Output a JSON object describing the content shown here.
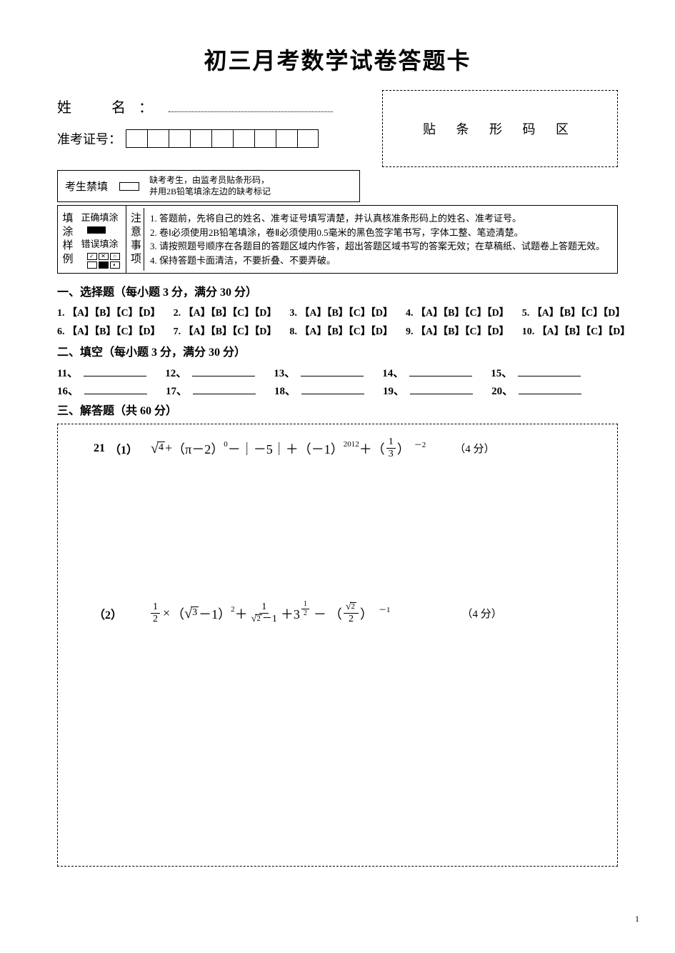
{
  "title": "初三月考数学试卷答题卡",
  "name_label": "姓　名：",
  "ticket_label": "准考证号：",
  "ticket_box_count": 9,
  "barcode_label": "贴 条 形 码 区",
  "absent_label": "考生禁填",
  "absent_text_1": "缺考考生，由监考员贴条形码，",
  "absent_text_2": "并用2B铅笔填涂左边的缺考标记",
  "fill_sample_vlabel": "填涂样例",
  "fill_correct_label": "正确填涂",
  "fill_wrong_label": "错误填涂",
  "notes_vlabel": "注意事项",
  "notes": [
    "1. 答题前，先将自己的姓名、准考证号填写清楚，并认真核准条形码上的姓名、准考证号。",
    "2. 卷Ⅰ必须使用2B铅笔填涂，卷Ⅱ必须使用0.5毫米的黑色签字笔书写，字体工整、笔迹清楚。",
    "3. 请按照题号顺序在各题目的答题区域内作答，超出答题区域书写的答案无效；在草稿纸、试题卷上答题无效。",
    "4. 保持答题卡面清洁，不要折叠、不要弄破。"
  ],
  "section1_heading": "一、选择题（每小题 3 分，满分 30 分）",
  "mc_options": "【A】【B】【C】【D】",
  "mc_numbers_row1": [
    "1.",
    "2.",
    "3.",
    "4.",
    "5."
  ],
  "mc_numbers_row2": [
    "6.",
    "7.",
    "8.",
    "9.",
    "10."
  ],
  "section2_heading": "二、填空（每小题 3 分，满分 30 分）",
  "fill_numbers_row1": [
    "11、",
    "12、",
    "13、",
    "14、",
    "15、"
  ],
  "fill_numbers_row2": [
    "16、",
    "17、",
    "18、",
    "19、",
    "20、"
  ],
  "section3_heading": "三、解答题（共 60 分）",
  "q21_num": "21",
  "q21_part1": "（1）",
  "q21_part2": "（2）",
  "q21_pts1": "（4 分）",
  "q21_pts2": "（4 分）",
  "math1": {
    "sqrt_arg": "4",
    "plus1": "+",
    "paren_pi": "（π－2）",
    "exp0": "0",
    "minus_abs": "－｜－5｜＋",
    "neg1": "（－1）",
    "exp2012": "2012",
    "plus_frac": "＋",
    "frac_num": "1",
    "frac_den": "3",
    "paren_open": "（",
    "paren_close": "）",
    "exp_neg2": "－2"
  },
  "math2": {
    "frac1_num": "1",
    "frac1_den": "2",
    "times": "×",
    "paren1": "（",
    "sqrt3": "3",
    "minus1": "－1）",
    "sq": "2",
    "plus1": "＋",
    "frac2_num": "1",
    "frac2_den_sqrt": "2",
    "frac2_den_rest": "－1",
    "plus2": "＋3",
    "exp_half_num": "1",
    "exp_half_den": "2",
    "minus2": "－",
    "paren2": "（",
    "frac3_num_sqrt": "2",
    "frac3_den": "2",
    "paren2_close": "）",
    "exp_neg1": "－1"
  },
  "page_num": "1"
}
